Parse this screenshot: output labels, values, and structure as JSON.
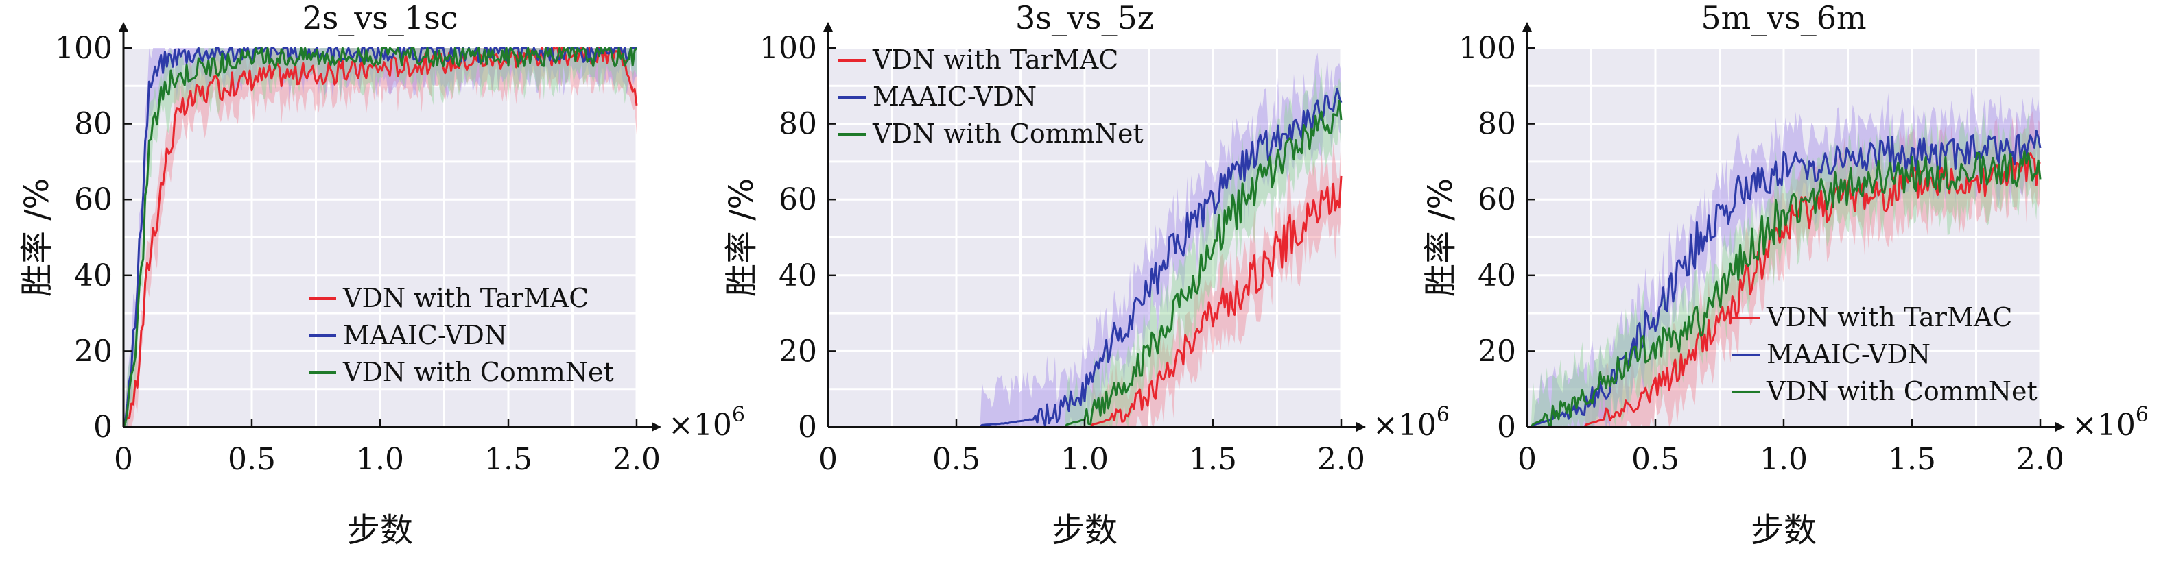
{
  "figure": {
    "exponent_base": "×10",
    "exponent_power": "6",
    "xlabel": "步数",
    "ylabel": "胜率 /%"
  },
  "series_colors": {
    "VDN with TarMAC": "#e8262e",
    "MAAIC-VDN": "#2d3aa8",
    "VDN with CommNet": "#1f7a2a"
  },
  "band_colors": {
    "VDN with TarMAC": "#f28b9a",
    "MAAIC-VDN": "#a78ee8",
    "VDN with CommNet": "#93d29a"
  },
  "plot_background": "#eae9f2",
  "chart_data": [
    {
      "type": "line",
      "title": "2s_vs_1sc",
      "xlabel": "步数",
      "ylabel": "胜率 /%",
      "xlim": [
        0,
        2.0
      ],
      "ylim": [
        0,
        100
      ],
      "xticks": [
        "0",
        "0.5",
        "1.0",
        "1.5",
        "2.0"
      ],
      "yticks": [
        "0",
        "20",
        "40",
        "60",
        "80",
        "100"
      ],
      "x_multiplier": "×10^6",
      "grid": true,
      "legend_position": "lower-right",
      "series": [
        {
          "name": "VDN with TarMAC",
          "x": [
            0,
            0.05,
            0.1,
            0.15,
            0.2,
            0.25,
            0.3,
            0.4,
            0.5,
            0.6,
            0.8,
            1.0,
            1.2,
            1.4,
            1.6,
            1.8,
            1.95,
            2.0
          ],
          "y": [
            0,
            10,
            45,
            65,
            80,
            85,
            88,
            90,
            92,
            93,
            93,
            95,
            96,
            97,
            98,
            98,
            98,
            88
          ]
        },
        {
          "name": "MAAIC-VDN",
          "x": [
            0,
            0.05,
            0.08,
            0.1,
            0.15,
            0.2,
            0.3,
            0.5,
            1.0,
            1.5,
            2.0
          ],
          "y": [
            0,
            30,
            70,
            90,
            96,
            98,
            99,
            99,
            99,
            99,
            99
          ]
        },
        {
          "name": "VDN with CommNet",
          "x": [
            0,
            0.05,
            0.1,
            0.15,
            0.2,
            0.3,
            0.5,
            0.7,
            1.0,
            1.5,
            2.0
          ],
          "y": [
            0,
            20,
            75,
            88,
            92,
            95,
            97,
            98,
            98,
            98,
            98
          ]
        }
      ]
    },
    {
      "type": "line",
      "title": "3s_vs_5z",
      "xlabel": "步数",
      "ylabel": "胜率 /%",
      "xlim": [
        0,
        2.0
      ],
      "ylim": [
        0,
        100
      ],
      "xticks": [
        "0",
        "0.5",
        "1.0",
        "1.5",
        "2.0"
      ],
      "yticks": [
        "0",
        "20",
        "40",
        "60",
        "80",
        "100"
      ],
      "x_multiplier": "×10^6",
      "grid": true,
      "legend_position": "upper-left",
      "series": [
        {
          "name": "VDN with TarMAC",
          "x": [
            0,
            0.9,
            1.0,
            1.1,
            1.2,
            1.3,
            1.4,
            1.5,
            1.6,
            1.7,
            1.8,
            1.9,
            2.0
          ],
          "y": [
            0,
            0,
            0,
            2,
            6,
            12,
            22,
            30,
            35,
            43,
            50,
            57,
            62
          ]
        },
        {
          "name": "MAAIC-VDN",
          "x": [
            0,
            0.5,
            0.7,
            0.8,
            0.9,
            1.0,
            1.1,
            1.2,
            1.3,
            1.4,
            1.5,
            1.6,
            1.7,
            1.8,
            1.9,
            2.0
          ],
          "y": [
            0,
            0,
            1,
            2,
            4,
            10,
            22,
            30,
            42,
            52,
            60,
            68,
            74,
            78,
            82,
            88
          ]
        },
        {
          "name": "VDN with CommNet",
          "x": [
            0,
            0.9,
            1.0,
            1.1,
            1.2,
            1.3,
            1.4,
            1.5,
            1.6,
            1.7,
            1.8,
            1.9,
            2.0
          ],
          "y": [
            0,
            0,
            2,
            8,
            15,
            25,
            36,
            48,
            58,
            66,
            73,
            78,
            83
          ]
        }
      ]
    },
    {
      "type": "line",
      "title": "5m_vs_6m",
      "xlabel": "步数",
      "ylabel": "胜率 /%",
      "xlim": [
        0,
        2.0
      ],
      "ylim": [
        0,
        100
      ],
      "xticks": [
        "0",
        "0.5",
        "1.0",
        "1.5",
        "2.0"
      ],
      "yticks": [
        "0",
        "20",
        "40",
        "60",
        "80",
        "100"
      ],
      "x_multiplier": "×10^6",
      "grid": true,
      "legend_position": "lower-right",
      "series": [
        {
          "name": "VDN with TarMAC",
          "x": [
            0,
            0.2,
            0.3,
            0.4,
            0.5,
            0.6,
            0.7,
            0.8,
            0.9,
            1.0,
            1.1,
            1.2,
            1.4,
            1.6,
            1.8,
            2.0
          ],
          "y": [
            0,
            0,
            2,
            6,
            10,
            16,
            24,
            32,
            42,
            52,
            58,
            60,
            62,
            65,
            66,
            68
          ]
        },
        {
          "name": "MAAIC-VDN",
          "x": [
            0,
            0.2,
            0.3,
            0.4,
            0.5,
            0.6,
            0.7,
            0.8,
            0.9,
            1.0,
            1.2,
            1.4,
            1.6,
            1.8,
            2.0
          ],
          "y": [
            0,
            4,
            10,
            20,
            30,
            42,
            52,
            60,
            65,
            68,
            70,
            72,
            72,
            73,
            74
          ]
        },
        {
          "name": "VDN with CommNet",
          "x": [
            0,
            0.2,
            0.3,
            0.4,
            0.5,
            0.6,
            0.7,
            0.8,
            0.9,
            1.0,
            1.2,
            1.4,
            1.6,
            1.8,
            2.0
          ],
          "y": [
            0,
            6,
            12,
            18,
            22,
            24,
            30,
            40,
            50,
            56,
            62,
            66,
            67,
            68,
            68
          ]
        }
      ]
    }
  ]
}
